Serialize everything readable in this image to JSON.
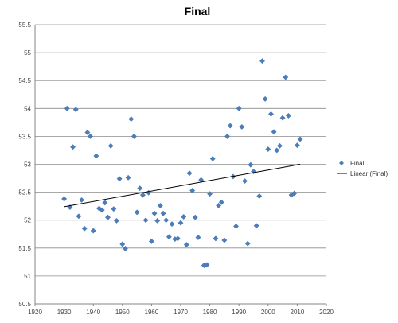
{
  "chart_data": {
    "type": "scatter",
    "title": "Final",
    "xlabel": "",
    "ylabel": "",
    "xlim": [
      1920,
      2020
    ],
    "ylim": [
      50.5,
      55.5
    ],
    "x_ticks": [
      "1920",
      "1930",
      "1940",
      "1950",
      "1960",
      "1970",
      "1980",
      "1990",
      "2000",
      "2010",
      "2020"
    ],
    "y_ticks": [
      "50.5",
      "51",
      "51.5",
      "52",
      "52.5",
      "53",
      "53.5",
      "54",
      "54.5",
      "55",
      "55.5"
    ],
    "grid": "horizontal",
    "legend_position": "right",
    "series": [
      {
        "name": "Final",
        "kind": "scatter",
        "color": "#4a7ebb",
        "points": [
          [
            1930,
            52.38
          ],
          [
            1931,
            54.0
          ],
          [
            1932,
            52.23
          ],
          [
            1933,
            53.31
          ],
          [
            1934,
            53.98
          ],
          [
            1935,
            52.07
          ],
          [
            1936,
            52.36
          ],
          [
            1937,
            51.85
          ],
          [
            1938,
            53.57
          ],
          [
            1939,
            53.5
          ],
          [
            1940,
            51.81
          ],
          [
            1941,
            53.15
          ],
          [
            1942,
            52.21
          ],
          [
            1943,
            52.18
          ],
          [
            1944,
            52.31
          ],
          [
            1945,
            52.05
          ],
          [
            1946,
            53.33
          ],
          [
            1947,
            52.2
          ],
          [
            1948,
            51.99
          ],
          [
            1949,
            52.74
          ],
          [
            1950,
            51.57
          ],
          [
            1951,
            51.49
          ],
          [
            1952,
            52.76
          ],
          [
            1953,
            53.81
          ],
          [
            1954,
            53.5
          ],
          [
            1955,
            52.14
          ],
          [
            1956,
            52.57
          ],
          [
            1957,
            52.45
          ],
          [
            1958,
            52.0
          ],
          [
            1959,
            52.49
          ],
          [
            1960,
            51.62
          ],
          [
            1961,
            52.12
          ],
          [
            1962,
            51.99
          ],
          [
            1963,
            52.26
          ],
          [
            1964,
            52.12
          ],
          [
            1965,
            52.0
          ],
          [
            1966,
            51.7
          ],
          [
            1967,
            51.93
          ],
          [
            1968,
            51.66
          ],
          [
            1969,
            51.67
          ],
          [
            1970,
            51.95
          ],
          [
            1971,
            52.06
          ],
          [
            1972,
            51.56
          ],
          [
            1973,
            52.84
          ],
          [
            1974,
            52.53
          ],
          [
            1975,
            52.05
          ],
          [
            1976,
            51.69
          ],
          [
            1977,
            52.72
          ],
          [
            1978,
            51.19
          ],
          [
            1979,
            51.2
          ],
          [
            1980,
            52.47
          ],
          [
            1981,
            53.1
          ],
          [
            1982,
            51.67
          ],
          [
            1983,
            52.26
          ],
          [
            1984,
            52.32
          ],
          [
            1985,
            51.64
          ],
          [
            1986,
            53.5
          ],
          [
            1987,
            53.69
          ],
          [
            1988,
            52.78
          ],
          [
            1989,
            51.89
          ],
          [
            1990,
            54.0
          ],
          [
            1991,
            53.67
          ],
          [
            1992,
            52.7
          ],
          [
            1993,
            51.58
          ],
          [
            1994,
            52.99
          ],
          [
            1995,
            52.87
          ],
          [
            1996,
            51.9
          ],
          [
            1997,
            52.43
          ],
          [
            1998,
            54.85
          ],
          [
            1999,
            54.17
          ],
          [
            2000,
            53.27
          ],
          [
            2001,
            53.9
          ],
          [
            2002,
            53.58
          ],
          [
            2003,
            53.25
          ],
          [
            2004,
            53.33
          ],
          [
            2005,
            53.83
          ],
          [
            2006,
            54.56
          ],
          [
            2007,
            53.87
          ],
          [
            2008,
            52.45
          ],
          [
            2009,
            52.48
          ],
          [
            2010,
            53.34
          ],
          [
            2011,
            53.45
          ]
        ]
      },
      {
        "name": "Linear (Final)",
        "kind": "line",
        "color": "#000000",
        "points": [
          [
            1930,
            52.24
          ],
          [
            2011,
            53.0
          ]
        ]
      }
    ]
  }
}
